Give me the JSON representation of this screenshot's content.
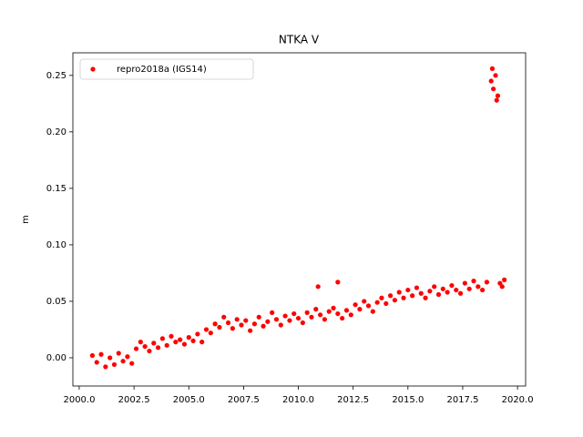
{
  "chart_data": {
    "type": "scatter",
    "title": "NTKA V",
    "ylabel": "m",
    "xlim": [
      1999.71,
      2020.37
    ],
    "ylim": [
      -0.025,
      0.27
    ],
    "xticks": [
      {
        "value": 2000,
        "label": "2000.0"
      },
      2002.5,
      {
        "value": 2005,
        "label": "2005.0"
      },
      2007.5,
      {
        "value": 2010,
        "label": "2010.0"
      },
      2012.5,
      {
        "value": 2015,
        "label": "2015.0"
      },
      2017.5,
      {
        "value": 2020,
        "label": "2020.0"
      }
    ],
    "yticks": [
      {
        "value": 0,
        "label": "0.00"
      },
      0.05,
      {
        "value": 0.1,
        "label": "0.10"
      },
      0.15,
      {
        "value": 0.2,
        "label": "0.20"
      },
      0.25
    ],
    "legend": "upper left",
    "x": [
      2000.6,
      2000.8,
      2001.0,
      2001.2,
      2001.4,
      2001.6,
      2001.8,
      2002.0,
      2002.2,
      2002.4,
      2002.6,
      2002.8,
      2003.0,
      2003.2,
      2003.4,
      2003.6,
      2003.8,
      2004.0,
      2004.2,
      2004.4,
      2004.6,
      2004.8,
      2005.0,
      2005.2,
      2005.4,
      2005.6,
      2005.8,
      2006.0,
      2006.2,
      2006.4,
      2006.6,
      2006.8,
      2007.0,
      2007.2,
      2007.4,
      2007.6,
      2007.8,
      2008.0,
      2008.2,
      2008.4,
      2008.6,
      2008.8,
      2009.0,
      2009.2,
      2009.4,
      2009.6,
      2009.8,
      2010.0,
      2010.2,
      2010.4,
      2010.6,
      2010.8,
      2011.0,
      2011.2,
      2011.4,
      2011.6,
      2011.8,
      2012.0,
      2012.2,
      2012.4,
      2012.6,
      2012.8,
      2013.0,
      2013.2,
      2013.4,
      2013.6,
      2013.8,
      2014.0,
      2014.2,
      2014.4,
      2014.6,
      2014.8,
      2015.0,
      2015.2,
      2015.4,
      2015.6,
      2015.8,
      2016.0,
      2016.2,
      2016.4,
      2016.6,
      2016.8,
      2017.0,
      2017.2,
      2017.4,
      2017.6,
      2017.8,
      2018.0,
      2018.2,
      2018.4,
      2018.6,
      2018.8,
      2018.9,
      2019.0,
      2019.1,
      2019.2,
      2019.3,
      2019.4,
      2010.9,
      2011.8,
      2018.85,
      2019.05
    ],
    "series": [
      {
        "name": "repro2018a (IGS14)",
        "color": "#ff0000",
        "values": [
          0.002,
          -0.004,
          0.003,
          -0.008,
          0.0,
          -0.006,
          0.004,
          -0.003,
          0.001,
          -0.005,
          0.008,
          0.014,
          0.01,
          0.006,
          0.013,
          0.009,
          0.017,
          0.011,
          0.019,
          0.014,
          0.016,
          0.012,
          0.018,
          0.015,
          0.021,
          0.014,
          0.025,
          0.022,
          0.03,
          0.027,
          0.036,
          0.031,
          0.026,
          0.034,
          0.029,
          0.033,
          0.024,
          0.03,
          0.036,
          0.028,
          0.032,
          0.04,
          0.034,
          0.029,
          0.037,
          0.033,
          0.039,
          0.035,
          0.031,
          0.04,
          0.036,
          0.043,
          0.038,
          0.034,
          0.041,
          0.044,
          0.039,
          0.035,
          0.042,
          0.038,
          0.047,
          0.043,
          0.05,
          0.046,
          0.041,
          0.049,
          0.053,
          0.048,
          0.055,
          0.051,
          0.058,
          0.053,
          0.06,
          0.055,
          0.062,
          0.057,
          0.053,
          0.059,
          0.063,
          0.056,
          0.061,
          0.058,
          0.064,
          0.06,
          0.057,
          0.066,
          0.061,
          0.068,
          0.063,
          0.06,
          0.067,
          0.245,
          0.238,
          0.25,
          0.232,
          0.066,
          0.063,
          0.069,
          0.063,
          0.067,
          0.256,
          0.228
        ]
      }
    ]
  }
}
